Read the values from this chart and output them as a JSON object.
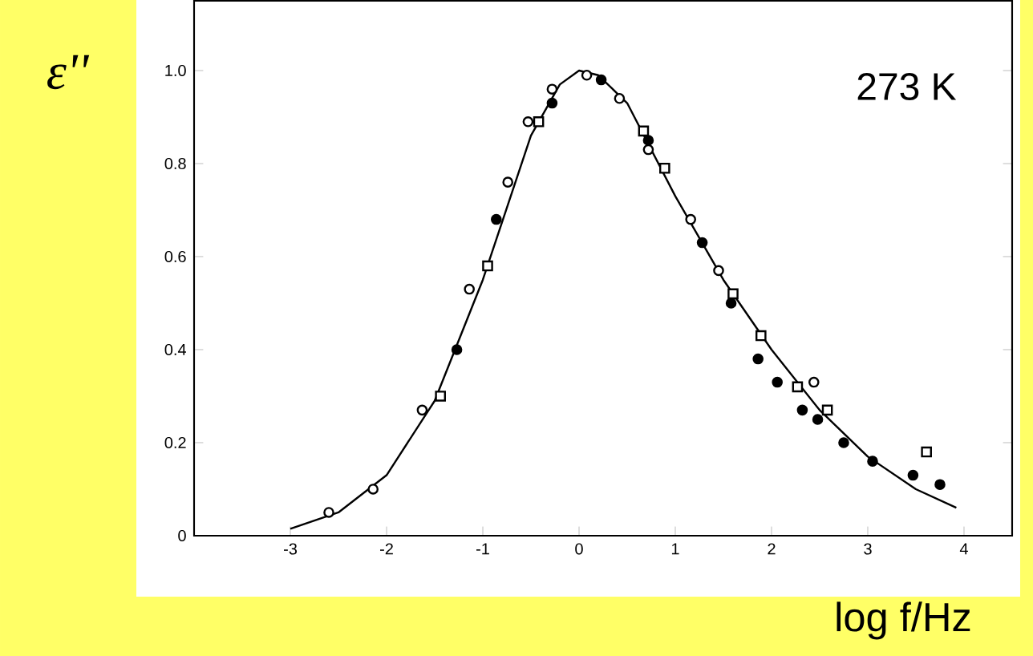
{
  "chart_data": {
    "type": "scatter",
    "xlabel": "log f/Hz",
    "ylabel": "ε''",
    "annotations": [
      "273 K"
    ],
    "xlim": [
      -4,
      4.5
    ],
    "ylim": [
      0,
      1.15
    ],
    "xticks": [
      -3,
      -2,
      -1,
      0,
      1,
      2,
      3,
      4
    ],
    "yticks": [
      0,
      {
        "value": 0.2,
        "label": "0.2"
      },
      {
        "value": 0.4,
        "label": "0.4"
      },
      {
        "value": 0.6,
        "label": "0.6"
      },
      {
        "value": 0.8,
        "label": "0.8"
      },
      {
        "value": 1,
        "label": "1.0"
      }
    ],
    "grid": false,
    "series": [
      {
        "type": "line",
        "color": "#000000",
        "marker": "none",
        "x": [
          -3,
          -2.5,
          -2,
          -1.5,
          -1,
          -0.5,
          -0.2,
          0,
          0.2,
          0.5,
          1,
          1.5,
          2,
          2.5,
          3,
          3.5,
          3.92
        ],
        "values": [
          0.015,
          0.05,
          0.13,
          0.29,
          0.55,
          0.86,
          0.97,
          1.0,
          0.99,
          0.93,
          0.73,
          0.55,
          0.4,
          0.27,
          0.17,
          0.1,
          0.06
        ]
      },
      {
        "color": "#ffffff",
        "marker": "circle",
        "x": [
          -2.6,
          -2.14,
          -1.63,
          -1.14,
          -0.74,
          -0.53,
          -0.28,
          0.08,
          0.42,
          0.72,
          1.16,
          1.45,
          2.44
        ],
        "values": [
          0.05,
          0.1,
          0.27,
          0.53,
          0.76,
          0.89,
          0.96,
          0.99,
          0.94,
          0.83,
          0.68,
          0.57,
          0.33
        ]
      },
      {
        "color": "#ffffff",
        "marker": "square",
        "x": [
          -1.44,
          -0.95,
          -0.42,
          0.67,
          0.89,
          1.6,
          1.89,
          2.27,
          2.58,
          3.61
        ],
        "values": [
          0.3,
          0.58,
          0.89,
          0.87,
          0.79,
          0.52,
          0.43,
          0.32,
          0.27,
          0.18
        ]
      },
      {
        "color": "#000000",
        "marker": "circle",
        "x": [
          -1.27,
          -0.86,
          -0.28,
          0.23,
          0.72,
          1.28,
          1.58,
          1.86,
          2.06,
          2.32,
          2.48,
          2.75,
          3.05,
          3.47,
          3.75
        ],
        "values": [
          0.4,
          0.68,
          0.93,
          0.98,
          0.85,
          0.63,
          0.5,
          0.38,
          0.33,
          0.27,
          0.25,
          0.2,
          0.16,
          0.13,
          0.11
        ]
      }
    ]
  }
}
